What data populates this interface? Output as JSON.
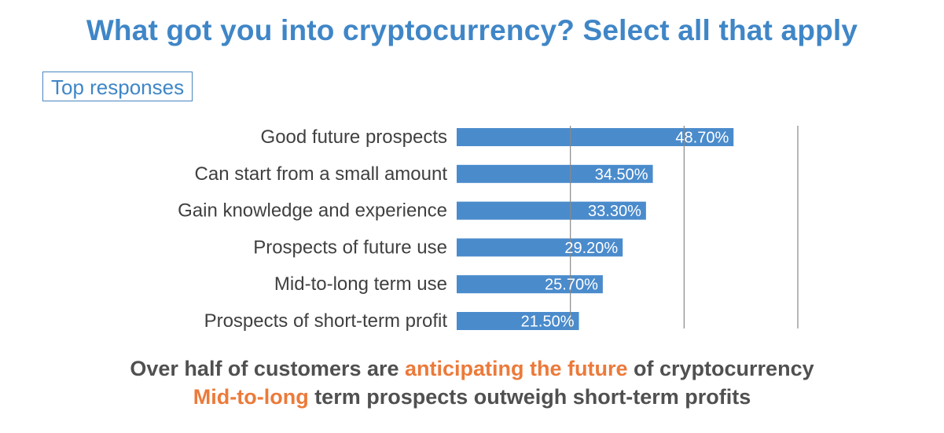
{
  "title": "What got you into cryptocurrency? Select all that apply",
  "subtitle": "Top responses",
  "colors": {
    "title": "#3f86c7",
    "bar": "#4a8bcc",
    "highlight": "#ec7a3a",
    "footer_text": "#505050",
    "gridline": "#888888"
  },
  "chart_data": {
    "type": "bar",
    "orientation": "horizontal",
    "categories": [
      "Good future prospects",
      "Can start from a small amount",
      "Gain knowledge and experience",
      "Prospects of future use",
      "Mid-to-long term use",
      "Prospects of short-term profit"
    ],
    "values": [
      48.7,
      34.5,
      33.3,
      29.2,
      25.7,
      21.5
    ],
    "data_labels": [
      "48.70%",
      "34.50%",
      "33.30%",
      "29.20%",
      "25.70%",
      "21.50%"
    ],
    "xlim": [
      0,
      60
    ],
    "gridlines_at": [
      20,
      40,
      60
    ],
    "grid": true,
    "legend": "none"
  },
  "footer": {
    "line1": {
      "before": "Over half of customers are ",
      "highlight": "anticipating the future",
      "after": " of cryptocurrency"
    },
    "line2": {
      "highlight": "Mid-to-long",
      "after": " term prospects outweigh short-term profits"
    }
  }
}
